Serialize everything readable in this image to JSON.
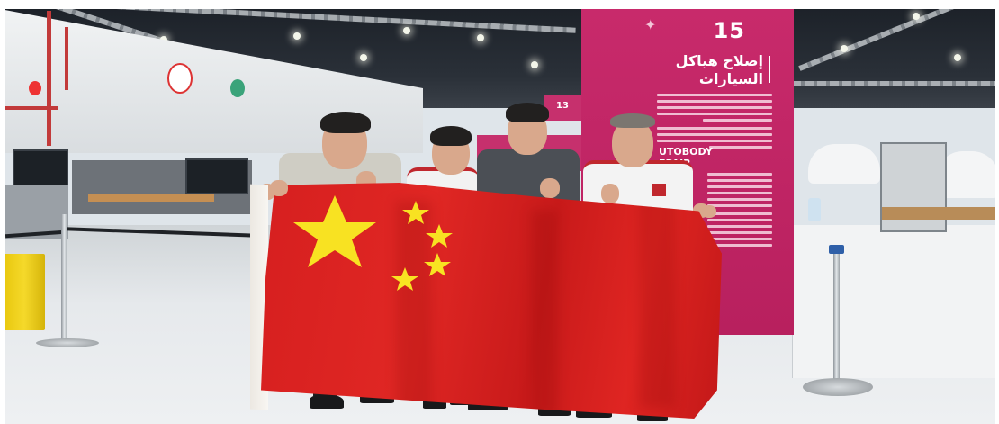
{
  "scene": {
    "panel": {
      "number": "15",
      "arabic_title_line1": "إصلاح هياكل",
      "arabic_title_line2": "السيارات",
      "english_title_line1": "UTOBODY",
      "english_title_line2": "EPAIR",
      "booth_tag": "13"
    }
  }
}
